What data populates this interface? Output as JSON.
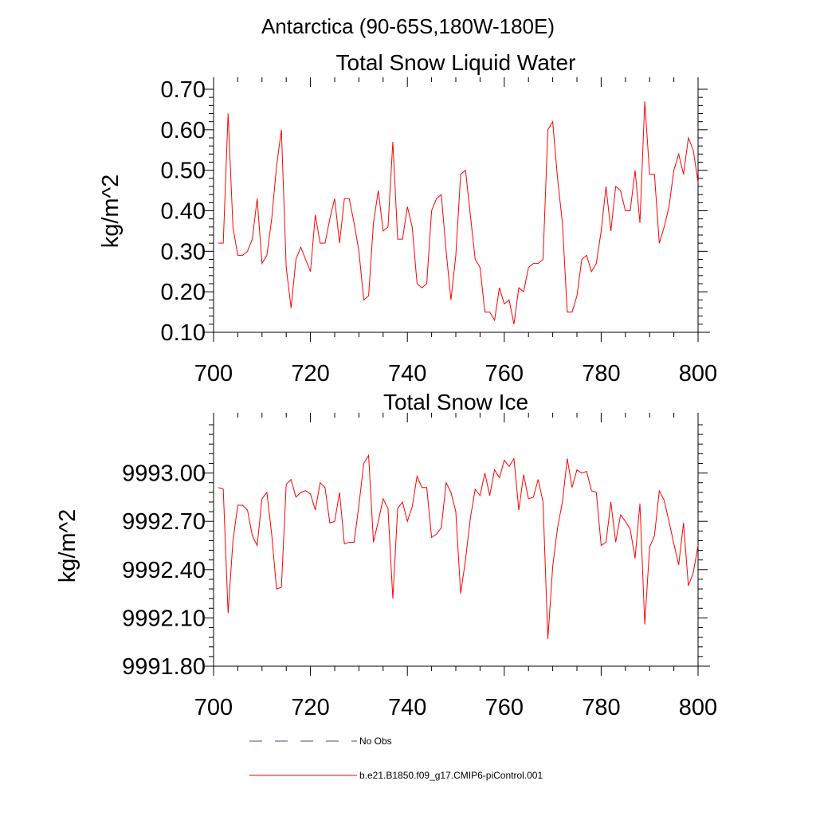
{
  "figure": {
    "suptitle": "Antarctica (90-65S,180W-180E)"
  },
  "chart_data": [
    {
      "type": "line",
      "title": "Total Snow Liquid Water",
      "xlabel": "",
      "ylabel": "kg/m^2",
      "xlim": [
        700,
        800
      ],
      "ylim": [
        0.1,
        0.7
      ],
      "xticks": [
        700,
        720,
        740,
        760,
        780,
        800
      ],
      "xtick_labels": [
        "700",
        "720",
        "740",
        "760",
        "780",
        "800"
      ],
      "yticks": [
        0.1,
        0.2,
        0.3,
        0.4,
        0.5,
        0.6,
        0.7
      ],
      "ytick_labels": [
        "0.10",
        "0.20",
        "0.30",
        "0.40",
        "0.50",
        "0.60",
        "0.70"
      ],
      "series": [
        {
          "name": "b.e21.B1850.f09_g17.CMIP6-piControl.001",
          "color": "#ff0000",
          "x": [
            701,
            702,
            703,
            704,
            705,
            706,
            707,
            708,
            709,
            710,
            711,
            712,
            713,
            714,
            715,
            716,
            717,
            718,
            719,
            720,
            721,
            722,
            723,
            724,
            725,
            726,
            727,
            728,
            729,
            730,
            731,
            732,
            733,
            734,
            735,
            736,
            737,
            738,
            739,
            740,
            741,
            742,
            743,
            744,
            745,
            746,
            747,
            748,
            749,
            750,
            751,
            752,
            753,
            754,
            755,
            756,
            757,
            758,
            759,
            760,
            761,
            762,
            763,
            764,
            765,
            766,
            767,
            768,
            769,
            770,
            771,
            772,
            773,
            774,
            775,
            776,
            777,
            778,
            779,
            780,
            781,
            782,
            783,
            784,
            785,
            786,
            787,
            788,
            789,
            790,
            791,
            792,
            793,
            794,
            795,
            796,
            797,
            798,
            799,
            800
          ],
          "values": [
            0.32,
            0.32,
            0.64,
            0.36,
            0.29,
            0.29,
            0.3,
            0.33,
            0.43,
            0.27,
            0.29,
            0.38,
            0.51,
            0.6,
            0.26,
            0.16,
            0.28,
            0.31,
            0.28,
            0.25,
            0.39,
            0.32,
            0.32,
            0.38,
            0.43,
            0.32,
            0.43,
            0.43,
            0.37,
            0.3,
            0.18,
            0.19,
            0.37,
            0.45,
            0.35,
            0.36,
            0.57,
            0.33,
            0.33,
            0.41,
            0.36,
            0.22,
            0.21,
            0.22,
            0.4,
            0.43,
            0.44,
            0.3,
            0.18,
            0.29,
            0.49,
            0.5,
            0.39,
            0.28,
            0.26,
            0.15,
            0.15,
            0.13,
            0.21,
            0.17,
            0.18,
            0.12,
            0.21,
            0.2,
            0.26,
            0.27,
            0.27,
            0.28,
            0.6,
            0.62,
            0.48,
            0.37,
            0.15,
            0.15,
            0.19,
            0.28,
            0.29,
            0.25,
            0.27,
            0.35,
            0.46,
            0.35,
            0.46,
            0.45,
            0.4,
            0.4,
            0.5,
            0.37,
            0.67,
            0.49,
            0.49,
            0.32,
            0.36,
            0.41,
            0.5,
            0.54,
            0.49,
            0.58,
            0.55,
            0.47
          ]
        }
      ]
    },
    {
      "type": "line",
      "title": "Total Snow Ice",
      "xlabel": "",
      "ylabel": "kg/m^2",
      "xlim": [
        700,
        800
      ],
      "ylim": [
        9991.8,
        9993.3
      ],
      "xticks": [
        700,
        720,
        740,
        760,
        780,
        800
      ],
      "xtick_labels": [
        "700",
        "720",
        "740",
        "760",
        "780",
        "800"
      ],
      "yticks": [
        9991.8,
        9992.1,
        9992.4,
        9992.7,
        9993.0
      ],
      "ytick_labels": [
        "9991.80",
        "9992.10",
        "9992.40",
        "9992.70",
        "9993.00"
      ],
      "series": [
        {
          "name": "b.e21.B1850.f09_g17.CMIP6-piControl.001",
          "color": "#ff0000",
          "x": [
            701,
            702,
            703,
            704,
            705,
            706,
            707,
            708,
            709,
            710,
            711,
            712,
            713,
            714,
            715,
            716,
            717,
            718,
            719,
            720,
            721,
            722,
            723,
            724,
            725,
            726,
            727,
            728,
            729,
            730,
            731,
            732,
            733,
            734,
            735,
            736,
            737,
            738,
            739,
            740,
            741,
            742,
            743,
            744,
            745,
            746,
            747,
            748,
            749,
            750,
            751,
            752,
            753,
            754,
            755,
            756,
            757,
            758,
            759,
            760,
            761,
            762,
            763,
            764,
            765,
            766,
            767,
            768,
            769,
            770,
            771,
            772,
            773,
            774,
            775,
            776,
            777,
            778,
            779,
            780,
            781,
            782,
            783,
            784,
            785,
            786,
            787,
            788,
            789,
            790,
            791,
            792,
            793,
            794,
            795,
            796,
            797,
            798,
            799,
            800
          ],
          "values": [
            9992.91,
            9992.9,
            9992.13,
            9992.58,
            9992.8,
            9992.8,
            9992.77,
            9992.61,
            9992.55,
            9992.84,
            9992.88,
            9992.62,
            9992.28,
            9992.29,
            9992.93,
            9992.96,
            9992.85,
            9992.88,
            9992.89,
            9992.87,
            9992.77,
            9992.94,
            9992.91,
            9992.69,
            9992.7,
            9992.88,
            9992.56,
            9992.57,
            9992.57,
            9992.8,
            9993.06,
            9993.11,
            9992.57,
            9992.7,
            9992.84,
            9992.78,
            9992.22,
            9992.78,
            9992.82,
            9992.7,
            9992.79,
            9992.98,
            9992.91,
            9992.91,
            9992.6,
            9992.62,
            9992.66,
            9992.94,
            9992.88,
            9992.76,
            9992.25,
            9992.46,
            9992.72,
            9992.9,
            9992.86,
            9993.0,
            9992.86,
            9993.02,
            9992.97,
            9993.08,
            9993.04,
            9993.09,
            9992.77,
            9992.99,
            9992.84,
            9992.85,
            9992.96,
            9992.82,
            9991.97,
            9992.42,
            9992.66,
            9992.82,
            9993.09,
            9992.91,
            9993.02,
            9993.0,
            9993.01,
            9992.89,
            9992.88,
            9992.55,
            9992.57,
            9992.82,
            9992.57,
            9992.74,
            9992.7,
            9992.65,
            9992.47,
            9992.81,
            9992.06,
            9992.54,
            9992.61,
            9992.89,
            9992.83,
            9992.7,
            9992.56,
            9992.43,
            9992.69,
            9992.3,
            9992.38,
            9992.55
          ]
        }
      ]
    }
  ],
  "legend": {
    "placement": "bottom-center",
    "items": [
      {
        "label": "No Obs",
        "style": "dashed",
        "color": "#4a4a78"
      },
      {
        "label": "b.e21.B1850.f09_g17.CMIP6-piControl.001",
        "style": "solid",
        "color": "#ff0000"
      }
    ]
  }
}
